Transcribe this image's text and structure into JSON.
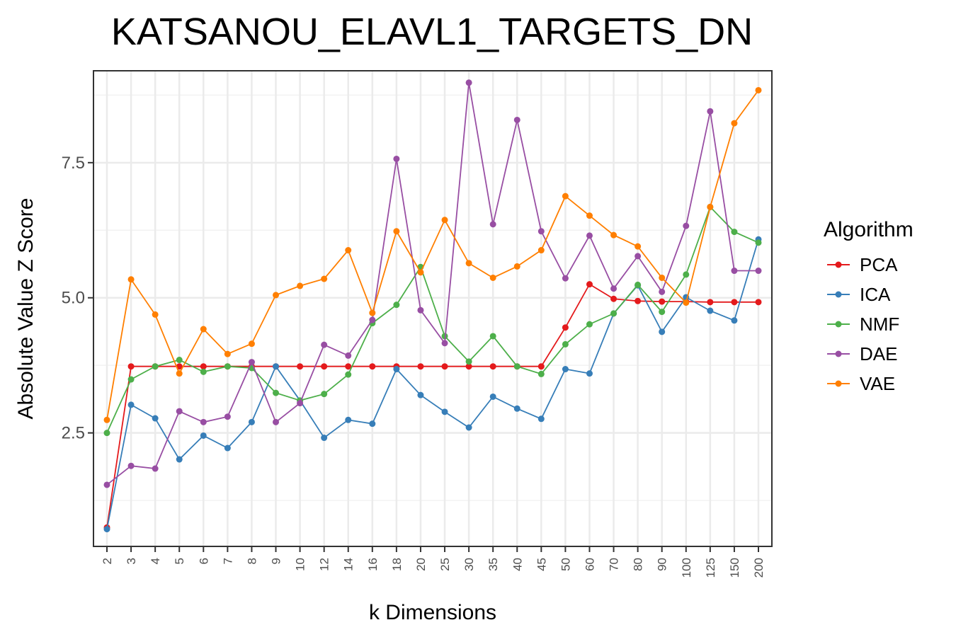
{
  "chart_data": {
    "type": "line",
    "title": "KATSANOU_ELAVL1_TARGETS_DN",
    "xlabel": "k Dimensions",
    "ylabel": "Absolute Value Z Score",
    "categories": [
      "2",
      "3",
      "4",
      "5",
      "6",
      "7",
      "8",
      "9",
      "10",
      "12",
      "14",
      "16",
      "18",
      "20",
      "25",
      "30",
      "35",
      "40",
      "45",
      "50",
      "60",
      "70",
      "80",
      "90",
      "100",
      "125",
      "150",
      "200"
    ],
    "y_ticks": [
      "2.5",
      "5.0",
      "7.5"
    ],
    "ylim": [
      0.4,
      9.2
    ],
    "grid": true,
    "legend": {
      "title": "Algorithm",
      "position": "right"
    },
    "series": [
      {
        "name": "PCA",
        "color": "#e41a1c",
        "values": [
          0.75,
          3.73,
          3.73,
          3.73,
          3.73,
          3.73,
          3.73,
          3.73,
          3.73,
          3.73,
          3.73,
          3.73,
          3.73,
          3.73,
          3.73,
          3.73,
          3.73,
          3.73,
          3.73,
          4.45,
          5.25,
          4.98,
          4.94,
          4.93,
          4.93,
          4.92,
          4.92,
          4.92
        ]
      },
      {
        "name": "ICA",
        "color": "#377eb8",
        "values": [
          0.72,
          3.02,
          2.77,
          2.01,
          2.45,
          2.22,
          2.7,
          3.73,
          3.1,
          2.41,
          2.74,
          2.67,
          3.68,
          3.2,
          2.89,
          2.6,
          3.17,
          2.95,
          2.76,
          3.68,
          3.6,
          4.71,
          5.23,
          4.37,
          5.01,
          4.76,
          4.58,
          6.08
        ]
      },
      {
        "name": "NMF",
        "color": "#4daf4a",
        "values": [
          2.5,
          3.49,
          3.73,
          3.85,
          3.63,
          3.73,
          3.7,
          3.24,
          3.1,
          3.22,
          3.58,
          4.53,
          4.87,
          5.57,
          4.29,
          3.82,
          4.29,
          3.73,
          3.59,
          4.14,
          4.51,
          4.71,
          5.24,
          4.74,
          5.43,
          6.68,
          6.22,
          6.02
        ]
      },
      {
        "name": "DAE",
        "color": "#984ea3",
        "values": [
          1.54,
          1.89,
          1.84,
          2.9,
          2.7,
          2.8,
          3.81,
          2.7,
          3.05,
          4.13,
          3.93,
          4.59,
          7.57,
          4.77,
          4.16,
          8.98,
          6.36,
          8.29,
          6.23,
          5.36,
          6.15,
          5.17,
          5.77,
          5.11,
          6.33,
          8.45,
          5.5,
          5.5
        ]
      },
      {
        "name": "VAE",
        "color": "#ff7f00",
        "values": [
          2.74,
          5.34,
          4.69,
          3.6,
          4.42,
          3.96,
          4.15,
          5.05,
          5.22,
          5.35,
          5.88,
          4.72,
          6.23,
          5.47,
          6.44,
          5.64,
          5.37,
          5.58,
          5.88,
          6.88,
          6.52,
          6.16,
          5.95,
          5.37,
          4.91,
          6.68,
          8.23,
          8.84
        ]
      }
    ]
  }
}
